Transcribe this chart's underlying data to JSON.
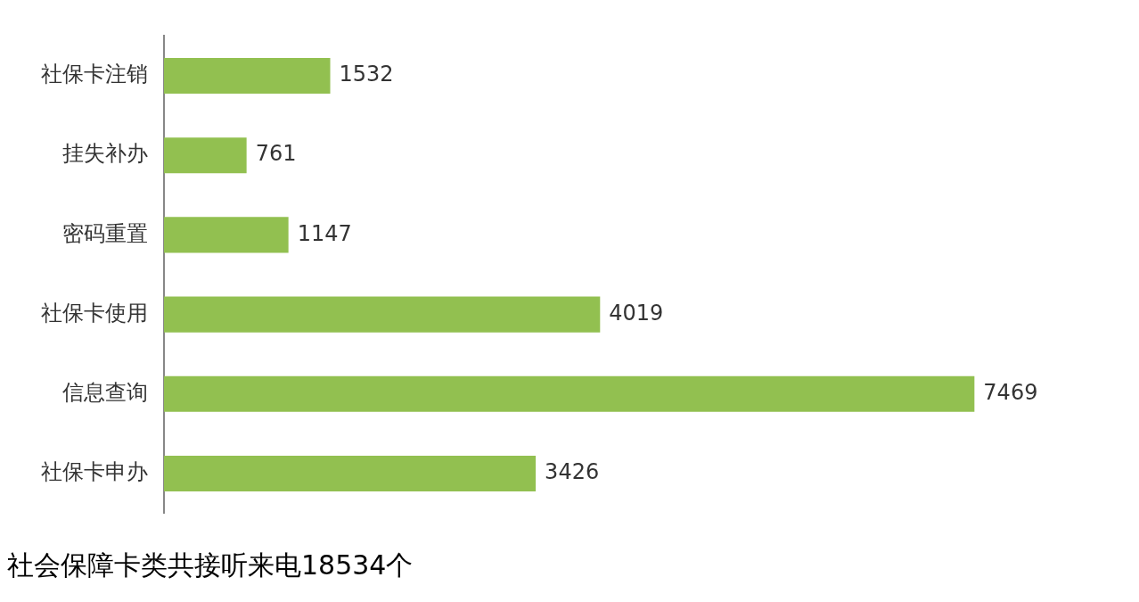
{
  "chart_data": {
    "type": "bar",
    "orientation": "horizontal",
    "categories": [
      "社保卡注销",
      "挂失补办",
      "密码重置",
      "社保卡使用",
      "信息查询",
      "社保卡申办"
    ],
    "values": [
      1532,
      761,
      1147,
      4019,
      7469,
      3426
    ],
    "color": "#92c050",
    "data_labels": true,
    "grid": false,
    "legend": false,
    "annotations": [
      "社会保障卡类共接听来电18534个"
    ]
  }
}
